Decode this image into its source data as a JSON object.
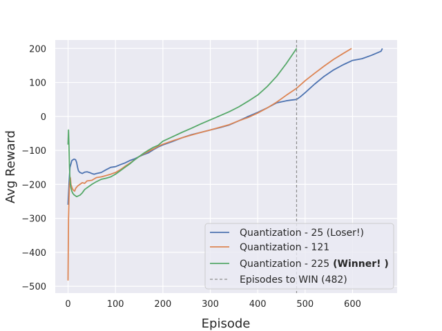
{
  "chart_data": {
    "type": "line",
    "xlabel": "Episode",
    "ylabel": "Avg Reward",
    "xlim": [
      -27,
      694
    ],
    "ylim": [
      -520,
      225
    ],
    "xticks": [
      0,
      100,
      200,
      300,
      400,
      500,
      600
    ],
    "yticks": [
      200,
      100,
      0,
      -100,
      -200,
      -300,
      -400,
      -500
    ],
    "xtick_labels": [
      "0",
      "100",
      "200",
      "300",
      "400",
      "500",
      "600"
    ],
    "ytick_labels": [
      "200",
      "100",
      "0",
      "−100",
      "−200",
      "−300",
      "−400",
      "−500"
    ],
    "grid": true,
    "legend_position": "lower-right",
    "vline": {
      "x": 482,
      "label": "Episodes to WIN (482)",
      "style": "dashed",
      "color": "#8c8c8c"
    },
    "series": [
      {
        "name": "Quantization - 25 (Loser!)",
        "color": "#4c72b0",
        "x": [
          0,
          2,
          4,
          6,
          8,
          10,
          12,
          14,
          16,
          18,
          20,
          22,
          25,
          30,
          35,
          40,
          45,
          50,
          55,
          60,
          70,
          80,
          90,
          100,
          110,
          120,
          130,
          140,
          150,
          160,
          170,
          180,
          190,
          200,
          220,
          240,
          260,
          280,
          300,
          320,
          340,
          360,
          380,
          400,
          420,
          440,
          460,
          470,
          482,
          490,
          500,
          520,
          540,
          560,
          580,
          600,
          620,
          640,
          660,
          663
        ],
        "y": [
          -260,
          -195,
          -150,
          -140,
          -130,
          -128,
          -126,
          -126,
          -128,
          -135,
          -150,
          -160,
          -165,
          -168,
          -164,
          -163,
          -165,
          -168,
          -170,
          -168,
          -165,
          -157,
          -150,
          -148,
          -142,
          -137,
          -130,
          -125,
          -118,
          -112,
          -107,
          -98,
          -90,
          -84,
          -74,
          -63,
          -54,
          -47,
          -40,
          -33,
          -25,
          -13,
          0,
          12,
          25,
          40,
          46,
          48,
          50,
          58,
          70,
          95,
          118,
          137,
          152,
          165,
          170,
          180,
          192,
          200
        ]
      },
      {
        "name": "Quantization - 121",
        "color": "#dd8452",
        "x": [
          0,
          1,
          2,
          3,
          4,
          5,
          6,
          8,
          10,
          12,
          14,
          16,
          20,
          25,
          30,
          35,
          40,
          50,
          60,
          70,
          80,
          90,
          100,
          110,
          120,
          130,
          140,
          150,
          160,
          170,
          180,
          190,
          200,
          220,
          240,
          260,
          280,
          300,
          320,
          340,
          360,
          380,
          400,
          420,
          440,
          460,
          482,
          500,
          520,
          540,
          560,
          580,
          598
        ],
        "y": [
          -483,
          -300,
          -240,
          -200,
          -178,
          -182,
          -200,
          -208,
          -215,
          -218,
          -220,
          -212,
          -205,
          -200,
          -195,
          -197,
          -190,
          -188,
          -180,
          -178,
          -174,
          -170,
          -165,
          -157,
          -147,
          -138,
          -128,
          -118,
          -110,
          -103,
          -96,
          -88,
          -82,
          -72,
          -63,
          -55,
          -47,
          -40,
          -32,
          -24,
          -13,
          -3,
          10,
          25,
          42,
          62,
          83,
          105,
          127,
          148,
          168,
          185,
          200
        ]
      },
      {
        "name": "Quantization - 225",
        "name_suffix_bold": "(Winner! )",
        "color": "#55a868",
        "x": [
          0,
          1,
          2,
          3,
          4,
          5,
          6,
          8,
          10,
          12,
          14,
          16,
          18,
          20,
          25,
          30,
          35,
          40,
          50,
          60,
          70,
          80,
          90,
          100,
          110,
          120,
          130,
          140,
          150,
          160,
          170,
          180,
          190,
          200,
          220,
          240,
          260,
          280,
          300,
          320,
          340,
          360,
          380,
          400,
          420,
          440,
          460,
          482
        ],
        "y": [
          -83,
          -40,
          -90,
          -150,
          -185,
          -200,
          -210,
          -220,
          -226,
          -230,
          -232,
          -234,
          -236,
          -235,
          -232,
          -225,
          -215,
          -210,
          -200,
          -192,
          -185,
          -182,
          -178,
          -170,
          -160,
          -150,
          -140,
          -128,
          -118,
          -108,
          -99,
          -91,
          -85,
          -73,
          -60,
          -47,
          -35,
          -22,
          -10,
          2,
          14,
          28,
          45,
          63,
          88,
          118,
          155,
          200
        ]
      }
    ]
  }
}
